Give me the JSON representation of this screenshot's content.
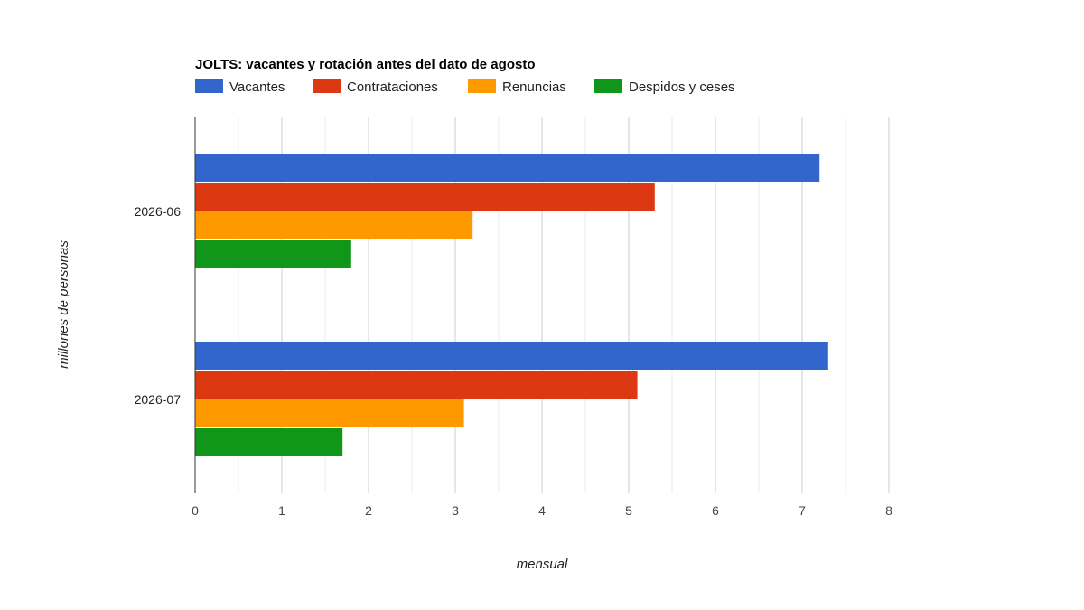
{
  "chart_data": {
    "type": "bar",
    "orientation": "horizontal",
    "title": "JOLTS: vacantes y rotación antes del dato de agosto",
    "xlabel": "mensual",
    "ylabel": "millones de personas",
    "categories": [
      "2026-06",
      "2026-07"
    ],
    "series": [
      {
        "name": "Vacantes",
        "color": "#3366cc",
        "values": [
          7.2,
          7.3
        ]
      },
      {
        "name": "Contrataciones",
        "color": "#dc3912",
        "values": [
          5.3,
          5.1
        ]
      },
      {
        "name": "Renuncias",
        "color": "#ff9900",
        "values": [
          3.2,
          3.1
        ]
      },
      {
        "name": "Despidos y ceses",
        "color": "#109618",
        "values": [
          1.8,
          1.7
        ]
      }
    ],
    "xlim": [
      0,
      8
    ],
    "xticks": [
      "0",
      "1",
      "2",
      "3",
      "4",
      "5",
      "6",
      "7",
      "8"
    ],
    "grid": true,
    "legend_position": "top-left"
  }
}
